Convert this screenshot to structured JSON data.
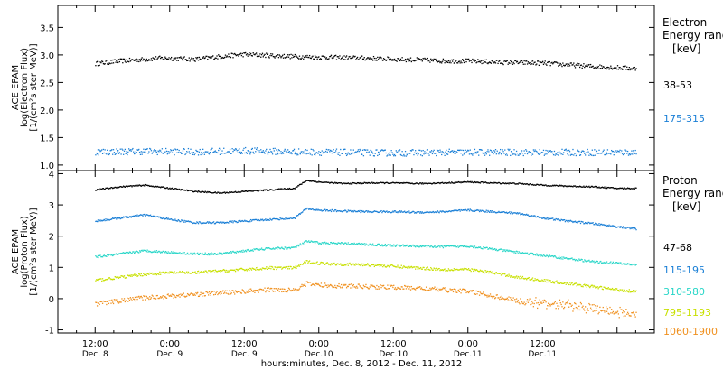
{
  "chart_data": [
    {
      "type": "scatter",
      "name": "electron-panel",
      "ylabel_lines": [
        "ACE EPAM",
        "log(Electron Flux)",
        "[1/(cm²s ster MeV)]"
      ],
      "ylim": [
        0.9,
        3.9
      ],
      "yticks": [
        1.0,
        1.5,
        2.0,
        2.5,
        3.0,
        3.5
      ],
      "legend_title_lines": [
        "Electron",
        "Energy ranges",
        "[keV]"
      ],
      "series": [
        {
          "name": "38-53",
          "color": "#000000",
          "x": [
            0,
            4,
            8,
            10,
            12,
            16,
            20,
            24,
            28,
            32,
            36,
            40,
            44,
            48,
            52,
            56,
            60,
            64,
            68,
            72,
            76,
            80,
            84,
            87
          ],
          "y": [
            2.85,
            2.9,
            2.93,
            2.95,
            2.95,
            2.93,
            2.98,
            3.02,
            3.0,
            2.98,
            2.97,
            2.96,
            2.95,
            2.93,
            2.92,
            2.9,
            2.9,
            2.88,
            2.87,
            2.86,
            2.83,
            2.8,
            2.78,
            2.76
          ]
        },
        {
          "name": "175-315",
          "color": "#1a7fd6",
          "x": [
            0,
            8,
            16,
            24,
            32,
            40,
            48,
            56,
            64,
            72,
            80,
            87
          ],
          "y": [
            1.25,
            1.26,
            1.25,
            1.27,
            1.25,
            1.24,
            1.23,
            1.24,
            1.24,
            1.24,
            1.24,
            1.24
          ]
        }
      ]
    },
    {
      "type": "scatter",
      "name": "proton-panel",
      "ylabel_lines": [
        "ACE EPAM",
        "log(Proton Flux)",
        "[1/(cm²s ster MeV)]"
      ],
      "ylim": [
        -1.1,
        4.1
      ],
      "yticks": [
        -1,
        0,
        1,
        2,
        3,
        4
      ],
      "legend_title_lines": [
        "Proton",
        "Energy ranges",
        "[keV]"
      ],
      "series": [
        {
          "name": "47-68",
          "color": "#000000",
          "x": [
            0,
            4,
            8,
            12,
            16,
            20,
            24,
            28,
            32,
            34,
            36,
            40,
            44,
            48,
            52,
            56,
            60,
            64,
            68,
            72,
            76,
            80,
            84,
            87
          ],
          "y": [
            3.5,
            3.6,
            3.65,
            3.55,
            3.45,
            3.4,
            3.45,
            3.5,
            3.55,
            3.8,
            3.75,
            3.7,
            3.72,
            3.72,
            3.7,
            3.72,
            3.75,
            3.72,
            3.7,
            3.65,
            3.62,
            3.6,
            3.55,
            3.55
          ]
        },
        {
          "name": "115-195",
          "color": "#1a7fd6",
          "x": [
            0,
            4,
            8,
            12,
            16,
            20,
            24,
            28,
            32,
            34,
            36,
            40,
            44,
            48,
            52,
            56,
            60,
            64,
            68,
            72,
            76,
            80,
            84,
            87
          ],
          "y": [
            2.5,
            2.6,
            2.7,
            2.55,
            2.45,
            2.45,
            2.5,
            2.55,
            2.6,
            2.9,
            2.85,
            2.82,
            2.8,
            2.8,
            2.78,
            2.8,
            2.85,
            2.8,
            2.75,
            2.6,
            2.5,
            2.42,
            2.32,
            2.25
          ]
        },
        {
          "name": "310-580",
          "color": "#28d6c8",
          "x": [
            0,
            4,
            8,
            12,
            16,
            20,
            24,
            28,
            32,
            34,
            36,
            40,
            44,
            48,
            52,
            56,
            60,
            64,
            68,
            72,
            76,
            80,
            84,
            87
          ],
          "y": [
            1.35,
            1.45,
            1.55,
            1.5,
            1.45,
            1.45,
            1.55,
            1.62,
            1.65,
            1.85,
            1.8,
            1.78,
            1.75,
            1.72,
            1.7,
            1.68,
            1.7,
            1.6,
            1.5,
            1.4,
            1.3,
            1.2,
            1.15,
            1.1
          ]
        },
        {
          "name": "795-1193",
          "color": "#c8e000",
          "x": [
            0,
            4,
            8,
            12,
            16,
            20,
            24,
            28,
            32,
            34,
            36,
            40,
            44,
            48,
            52,
            56,
            60,
            64,
            68,
            72,
            76,
            80,
            84,
            87
          ],
          "y": [
            0.6,
            0.7,
            0.8,
            0.85,
            0.85,
            0.9,
            0.95,
            1.0,
            1.0,
            1.2,
            1.15,
            1.12,
            1.1,
            1.05,
            1.0,
            0.95,
            0.95,
            0.85,
            0.7,
            0.6,
            0.5,
            0.4,
            0.3,
            0.25
          ]
        },
        {
          "name": "1060-1900",
          "color": "#f0901e",
          "x": [
            0,
            4,
            8,
            12,
            16,
            20,
            24,
            28,
            32,
            34,
            36,
            40,
            44,
            48,
            52,
            56,
            60,
            64,
            68,
            72,
            76,
            80,
            84,
            87
          ],
          "y": [
            -0.15,
            -0.05,
            0.05,
            0.1,
            0.15,
            0.2,
            0.25,
            0.3,
            0.3,
            0.5,
            0.45,
            0.42,
            0.4,
            0.38,
            0.35,
            0.3,
            0.25,
            0.1,
            -0.05,
            -0.15,
            -0.2,
            -0.3,
            -0.4,
            -0.5
          ]
        }
      ]
    }
  ],
  "x_axis": {
    "xlim": [
      -6,
      90
    ],
    "ticks": [
      {
        "x": 0,
        "time": "12:00",
        "date": "Dec. 8"
      },
      {
        "x": 12,
        "time": "0:00",
        "date": "Dec. 9"
      },
      {
        "x": 24,
        "time": "12:00",
        "date": "Dec. 9"
      },
      {
        "x": 36,
        "time": "0:00",
        "date": "Dec.10"
      },
      {
        "x": 48,
        "time": "12:00",
        "date": "Dec.10"
      },
      {
        "x": 60,
        "time": "0:00",
        "date": "Dec.11"
      },
      {
        "x": 72,
        "time": "12:00",
        "date": "Dec.11"
      }
    ],
    "label": "hours:minutes, Dec. 8, 2012 - Dec. 11, 2012"
  }
}
